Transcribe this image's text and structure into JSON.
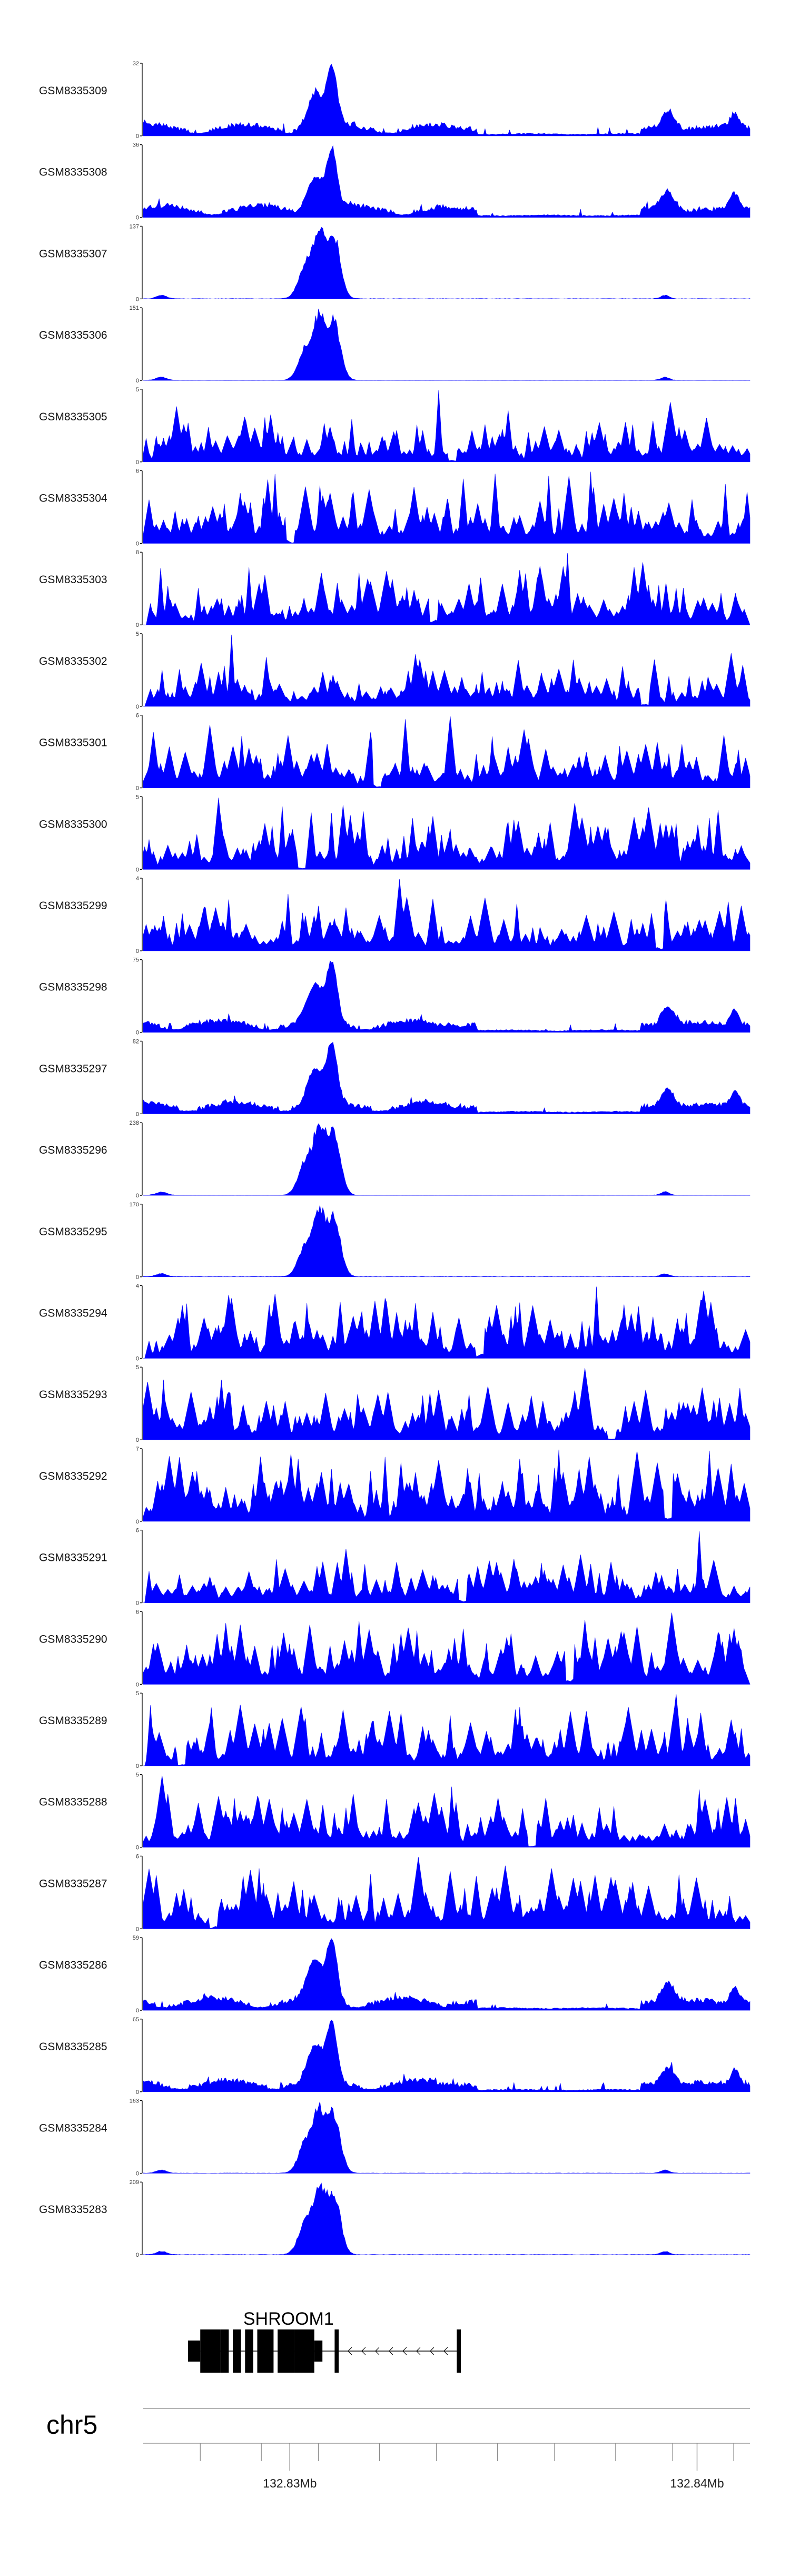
{
  "chart_data": {
    "type": "area",
    "title": "",
    "chromosome": "chr5",
    "region_mb": [
      132.8264,
      132.8413
    ],
    "fill_color": "#0000ff",
    "x_tick_labels": [
      {
        "pos_mb": 132.83,
        "label": "132.83Mb"
      },
      {
        "pos_mb": 132.84,
        "label": "132.84Mb"
      }
    ],
    "minor_ticks_mb": [
      132.8278,
      132.8293,
      132.8307,
      132.8322,
      132.8336,
      132.8351,
      132.8365,
      132.838,
      132.8394,
      132.8409
    ],
    "gene": {
      "name": "SHROOM1",
      "strand": "-",
      "start_mb": 132.8278,
      "end_mb": 132.8342,
      "exons": [
        [
          132.8278,
          132.8283
        ],
        [
          132.8283,
          132.8285
        ],
        [
          132.8286,
          132.8288
        ],
        [
          132.8289,
          132.8291
        ],
        [
          132.8292,
          132.8296
        ],
        [
          132.8297,
          132.8301
        ],
        [
          132.8301,
          132.8306
        ],
        [
          132.8311,
          132.8312
        ],
        [
          132.8341,
          132.8342
        ]
      ],
      "utr": [
        [
          132.8275,
          132.8278
        ],
        [
          132.8306,
          132.8308
        ]
      ]
    },
    "series": [
      {
        "name": "GSM8335309",
        "ymax": 32,
        "kind": "broad_peak",
        "seed": 309
      },
      {
        "name": "GSM8335308",
        "ymax": 36,
        "kind": "broad_peak",
        "seed": 308
      },
      {
        "name": "GSM8335307",
        "ymax": 137,
        "kind": "sharp_peak",
        "seed": 307
      },
      {
        "name": "GSM8335306",
        "ymax": 151,
        "kind": "sharp_peak",
        "seed": 306
      },
      {
        "name": "GSM8335305",
        "ymax": 5,
        "kind": "noise",
        "seed": 305
      },
      {
        "name": "GSM8335304",
        "ymax": 6,
        "kind": "noise",
        "seed": 304
      },
      {
        "name": "GSM8335303",
        "ymax": 8,
        "kind": "noise",
        "seed": 303
      },
      {
        "name": "GSM8335302",
        "ymax": 5,
        "kind": "noise",
        "seed": 302
      },
      {
        "name": "GSM8335301",
        "ymax": 6,
        "kind": "noise",
        "seed": 301
      },
      {
        "name": "GSM8335300",
        "ymax": 5,
        "kind": "noise",
        "seed": 300
      },
      {
        "name": "GSM8335299",
        "ymax": 4,
        "kind": "noise",
        "seed": 299
      },
      {
        "name": "GSM8335298",
        "ymax": 75,
        "kind": "broad_peak",
        "seed": 298
      },
      {
        "name": "GSM8335297",
        "ymax": 82,
        "kind": "broad_peak",
        "seed": 297
      },
      {
        "name": "GSM8335296",
        "ymax": 238,
        "kind": "sharp_peak",
        "seed": 296
      },
      {
        "name": "GSM8335295",
        "ymax": 170,
        "kind": "sharp_peak",
        "seed": 295
      },
      {
        "name": "GSM8335294",
        "ymax": 4,
        "kind": "noise",
        "seed": 294
      },
      {
        "name": "GSM8335293",
        "ymax": 5,
        "kind": "noise",
        "seed": 293
      },
      {
        "name": "GSM8335292",
        "ymax": 7,
        "kind": "noise",
        "seed": 292
      },
      {
        "name": "GSM8335291",
        "ymax": 6,
        "kind": "noise",
        "seed": 291
      },
      {
        "name": "GSM8335290",
        "ymax": 6,
        "kind": "noise",
        "seed": 290
      },
      {
        "name": "GSM8335289",
        "ymax": 5,
        "kind": "noise",
        "seed": 289
      },
      {
        "name": "GSM8335288",
        "ymax": 5,
        "kind": "noise",
        "seed": 288
      },
      {
        "name": "GSM8335287",
        "ymax": 6,
        "kind": "noise",
        "seed": 287
      },
      {
        "name": "GSM8335286",
        "ymax": 59,
        "kind": "broad_peak",
        "seed": 286
      },
      {
        "name": "GSM8335285",
        "ymax": 65,
        "kind": "broad_peak",
        "seed": 285
      },
      {
        "name": "GSM8335284",
        "ymax": 163,
        "kind": "sharp_peak",
        "seed": 284
      },
      {
        "name": "GSM8335283",
        "ymax": 209,
        "kind": "sharp_peak",
        "seed": 283
      }
    ]
  }
}
